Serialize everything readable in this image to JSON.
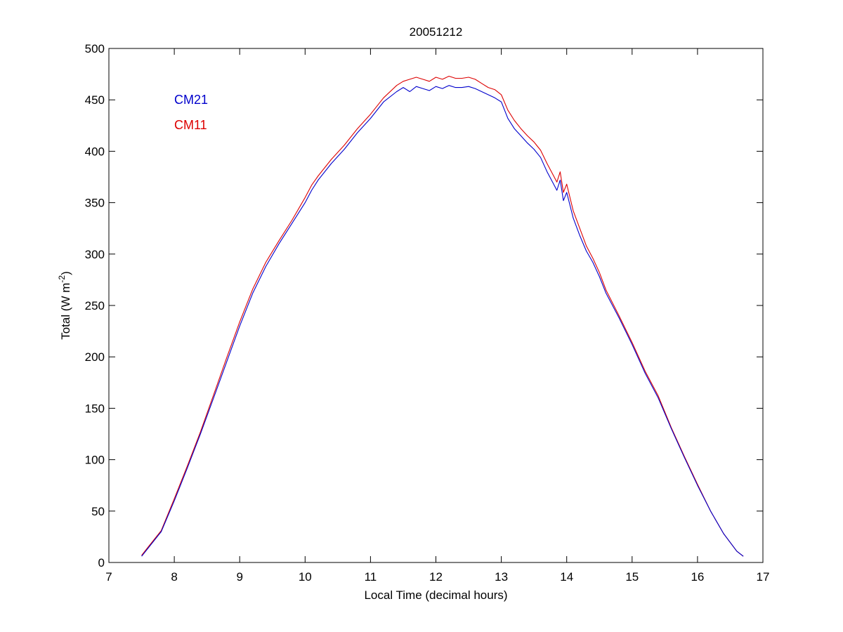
{
  "chart_data": {
    "type": "line",
    "title": "20051212",
    "xlabel": "Local Time (decimal hours)",
    "ylabel_main": "Total (W m",
    "ylabel_sup": "-2",
    "ylabel_close": ")",
    "xlim": [
      7,
      17
    ],
    "ylim": [
      0,
      500
    ],
    "xticks": [
      7,
      8,
      9,
      10,
      11,
      12,
      13,
      14,
      15,
      16,
      17
    ],
    "yticks": [
      0,
      50,
      100,
      150,
      200,
      250,
      300,
      350,
      400,
      450,
      500
    ],
    "grid": false,
    "legend_position": "top-left",
    "x": [
      7.5,
      7.6,
      7.8,
      8.0,
      8.2,
      8.4,
      8.6,
      8.8,
      9.0,
      9.2,
      9.4,
      9.6,
      9.8,
      10.0,
      10.1,
      10.2,
      10.4,
      10.6,
      10.8,
      11.0,
      11.2,
      11.4,
      11.5,
      11.6,
      11.7,
      11.8,
      11.9,
      12.0,
      12.1,
      12.2,
      12.3,
      12.4,
      12.5,
      12.6,
      12.7,
      12.8,
      12.9,
      13.0,
      13.1,
      13.2,
      13.3,
      13.4,
      13.5,
      13.6,
      13.7,
      13.8,
      13.85,
      13.9,
      13.95,
      14.0,
      14.1,
      14.2,
      14.3,
      14.4,
      14.5,
      14.6,
      14.8,
      15.0,
      15.2,
      15.4,
      15.6,
      15.8,
      16.0,
      16.2,
      16.4,
      16.6,
      16.7
    ],
    "series": [
      {
        "name": "CM21",
        "color": "#0000cc",
        "values": [
          6,
          14,
          30,
          60,
          92,
          125,
          160,
          195,
          230,
          262,
          288,
          310,
          330,
          350,
          362,
          372,
          388,
          402,
          418,
          432,
          448,
          458,
          462,
          458,
          463,
          461,
          459,
          463,
          461,
          464,
          462,
          462,
          463,
          461,
          458,
          455,
          452,
          448,
          432,
          422,
          415,
          408,
          402,
          394,
          380,
          368,
          362,
          372,
          352,
          360,
          335,
          318,
          303,
          292,
          278,
          262,
          238,
          212,
          184,
          160,
          130,
          102,
          75,
          50,
          28,
          11,
          6
        ]
      },
      {
        "name": "CM11",
        "color": "#dd0000",
        "values": [
          7,
          15,
          31,
          62,
          94,
          127,
          163,
          199,
          234,
          266,
          292,
          313,
          333,
          355,
          367,
          376,
          392,
          406,
          422,
          436,
          452,
          464,
          468,
          470,
          472,
          470,
          468,
          472,
          470,
          473,
          471,
          471,
          472,
          470,
          466,
          462,
          460,
          455,
          440,
          430,
          422,
          415,
          409,
          401,
          388,
          376,
          370,
          380,
          360,
          368,
          342,
          325,
          308,
          296,
          282,
          265,
          240,
          214,
          186,
          162,
          131,
          103,
          76,
          50,
          28,
          11,
          6
        ]
      }
    ]
  }
}
